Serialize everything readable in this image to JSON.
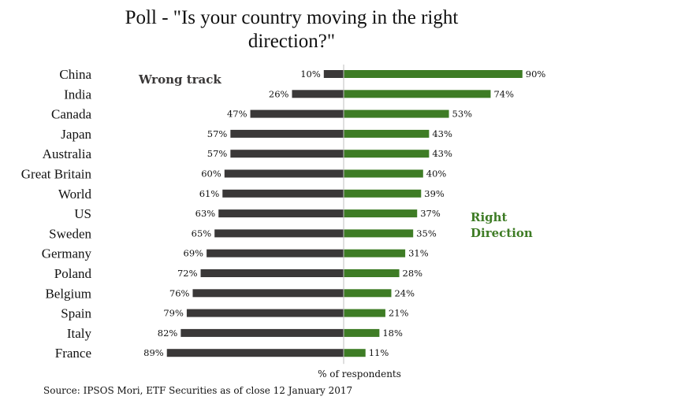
{
  "title": {
    "line1": "Poll - \"Is your country moving in the right",
    "line2": "direction?\""
  },
  "source": "Source: IPSOS Mori, ETF Securities as of close 12 January 2017",
  "colors": {
    "wrong_track": "#3a3838",
    "right_direction": "#3e7c25",
    "text": "#111111"
  },
  "chart_data": {
    "type": "bar",
    "orientation": "horizontal-diverging",
    "categories": [
      "China",
      "India",
      "Canada",
      "Japan",
      "Australia",
      "Great Britain",
      "World",
      "US",
      "Sweden",
      "Germany",
      "Poland",
      "Belgium",
      "Spain",
      "Italy",
      "France"
    ],
    "series": [
      {
        "name": "Wrong track",
        "values": [
          10,
          26,
          47,
          57,
          57,
          60,
          61,
          63,
          65,
          69,
          72,
          76,
          79,
          82,
          89
        ],
        "color": "#3a3838"
      },
      {
        "name": "Right Direction",
        "values": [
          90,
          74,
          53,
          43,
          43,
          40,
          39,
          37,
          35,
          31,
          28,
          24,
          21,
          18,
          11
        ],
        "color": "#3e7c25"
      }
    ],
    "value_suffix": "%",
    "xlabel": "% of respondents",
    "xlim": [
      -100,
      100
    ],
    "annotations": {
      "wrong_track": "Wrong track",
      "right_direction": [
        "Right",
        "Direction"
      ]
    }
  }
}
